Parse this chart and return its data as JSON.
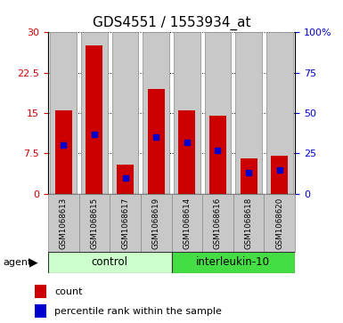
{
  "title": "GDS4551 / 1553934_at",
  "samples": [
    "GSM1068613",
    "GSM1068615",
    "GSM1068617",
    "GSM1068619",
    "GSM1068614",
    "GSM1068616",
    "GSM1068618",
    "GSM1068620"
  ],
  "red_values": [
    15.5,
    27.5,
    5.5,
    19.5,
    15.5,
    14.5,
    6.5,
    7.0
  ],
  "blue_percentiles": [
    30.0,
    36.7,
    10.0,
    35.0,
    31.7,
    26.7,
    13.3,
    15.0
  ],
  "groups": [
    "control",
    "control",
    "control",
    "control",
    "interleukin-10",
    "interleukin-10",
    "interleukin-10",
    "interleukin-10"
  ],
  "control_color": "#CCFFCC",
  "interleukin_color": "#44DD44",
  "red_color": "#CC0000",
  "blue_color": "#0000CC",
  "bar_bg_color": "#C8C8C8",
  "ylim_left": [
    0,
    30
  ],
  "ylim_right": [
    0,
    100
  ],
  "yticks_left": [
    0,
    7.5,
    15,
    22.5,
    30
  ],
  "yticks_right": [
    0,
    25,
    50,
    75,
    100
  ],
  "ytick_labels_left": [
    "0",
    "7.5",
    "15",
    "22.5",
    "30"
  ],
  "ytick_labels_right": [
    "0",
    "25",
    "50",
    "75",
    "100%"
  ],
  "legend_count": "count",
  "legend_percentile": "percentile rank within the sample",
  "agent_label": "agent",
  "bar_width": 0.55,
  "title_fontsize": 11,
  "tick_fontsize": 8
}
